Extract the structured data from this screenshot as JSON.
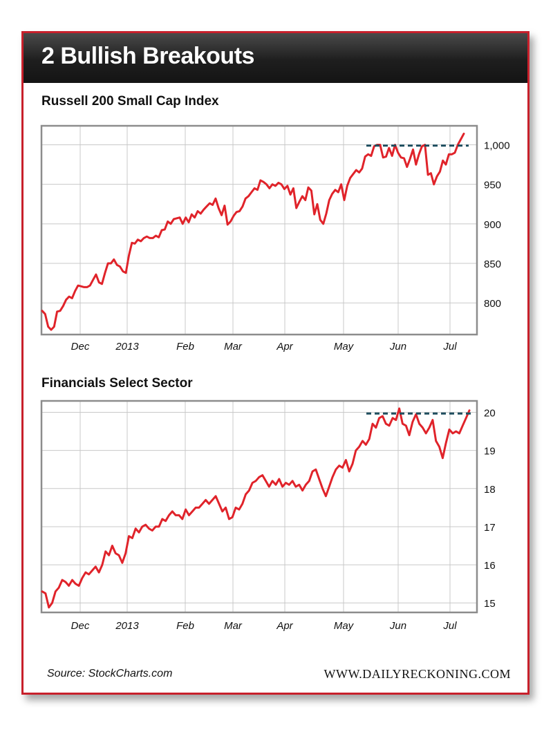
{
  "header": {
    "title": "2 Bullish Breakouts"
  },
  "footer": {
    "source": "Source: StockCharts.com",
    "site": "WWW.DAILYRECKONING.COM"
  },
  "colors": {
    "series": "#e0232a",
    "resistance": "#1f4e5f",
    "border": "#c8202b",
    "grid": "#c8c8c8"
  },
  "chart_data": [
    {
      "type": "line",
      "title": "Russell 200 Small Cap Index",
      "x_tick_labels": [
        "Dec",
        "2013",
        "Feb",
        "Mar",
        "Apr",
        "May",
        "Jun",
        "Jul"
      ],
      "y_ticks": [
        800,
        850,
        900,
        950,
        1000
      ],
      "y_tick_labels": [
        "800",
        "850",
        "900",
        "950",
        "1,000"
      ],
      "ylim": [
        760,
        1024
      ],
      "resistance_level": 999,
      "grid": true,
      "series": [
        {
          "values": [
            790,
            786,
            770,
            766,
            770,
            789,
            790,
            796,
            804,
            808,
            806,
            815,
            822,
            821,
            820,
            820,
            822,
            829,
            836,
            826,
            824,
            838,
            850,
            850,
            855,
            848,
            846,
            840,
            838,
            860,
            876,
            875,
            880,
            878,
            882,
            884,
            882,
            882,
            885,
            883,
            892,
            893,
            903,
            900,
            906,
            907,
            908,
            900,
            908,
            902,
            912,
            908,
            916,
            913,
            918,
            922,
            926,
            924,
            932,
            920,
            911,
            923,
            899,
            903,
            910,
            915,
            916,
            922,
            932,
            935,
            940,
            945,
            943,
            955,
            953,
            950,
            945,
            950,
            948,
            952,
            950,
            944,
            948,
            937,
            945,
            920,
            928,
            935,
            930,
            946,
            942,
            912,
            925,
            905,
            900,
            913,
            930,
            938,
            943,
            940,
            950,
            930,
            948,
            958,
            963,
            968,
            965,
            970,
            985,
            988,
            986,
            998,
            1000,
            1000,
            984,
            985,
            996,
            986,
            1000,
            990,
            984,
            983,
            972,
            982,
            994,
            975,
            988,
            998,
            1000,
            962,
            964,
            950,
            960,
            966,
            980,
            975,
            988,
            988,
            990,
            1000,
            1007,
            1014
          ]
        }
      ]
    },
    {
      "type": "line",
      "title": "Financials Select Sector",
      "x_tick_labels": [
        "Dec",
        "2013",
        "Feb",
        "Mar",
        "Apr",
        "May",
        "Jun",
        "Jul"
      ],
      "y_ticks": [
        15,
        16,
        17,
        18,
        19,
        20
      ],
      "y_tick_labels": [
        "15",
        "16",
        "17",
        "18",
        "19",
        "20"
      ],
      "ylim": [
        14.75,
        20.3
      ],
      "resistance_level": 19.97,
      "grid": true,
      "series": [
        {
          "values": [
            15.3,
            15.25,
            14.88,
            15.0,
            15.3,
            15.4,
            15.6,
            15.55,
            15.45,
            15.6,
            15.5,
            15.45,
            15.65,
            15.8,
            15.75,
            15.85,
            15.95,
            15.8,
            16.0,
            16.35,
            16.25,
            16.5,
            16.3,
            16.25,
            16.05,
            16.3,
            16.75,
            16.7,
            16.95,
            16.85,
            17.0,
            17.05,
            16.95,
            16.9,
            17.0,
            17.0,
            17.2,
            17.15,
            17.3,
            17.4,
            17.3,
            17.3,
            17.2,
            17.45,
            17.3,
            17.4,
            17.5,
            17.5,
            17.6,
            17.7,
            17.6,
            17.7,
            17.8,
            17.6,
            17.4,
            17.5,
            17.2,
            17.25,
            17.5,
            17.45,
            17.6,
            17.85,
            17.95,
            18.15,
            18.2,
            18.3,
            18.35,
            18.2,
            18.05,
            18.2,
            18.1,
            18.25,
            18.05,
            18.15,
            18.1,
            18.2,
            18.05,
            18.1,
            17.95,
            18.1,
            18.2,
            18.45,
            18.5,
            18.25,
            18.0,
            17.8,
            18.05,
            18.3,
            18.5,
            18.6,
            18.55,
            18.75,
            18.45,
            18.65,
            19.0,
            19.1,
            19.25,
            19.15,
            19.3,
            19.7,
            19.6,
            19.85,
            19.9,
            19.7,
            19.65,
            19.85,
            19.8,
            20.1,
            19.7,
            19.65,
            19.4,
            19.75,
            19.95,
            19.7,
            19.6,
            19.45,
            19.6,
            19.8,
            19.25,
            19.1,
            18.8,
            19.2,
            19.55,
            19.45,
            19.5,
            19.45,
            19.65,
            19.85,
            20.05
          ]
        }
      ]
    }
  ]
}
